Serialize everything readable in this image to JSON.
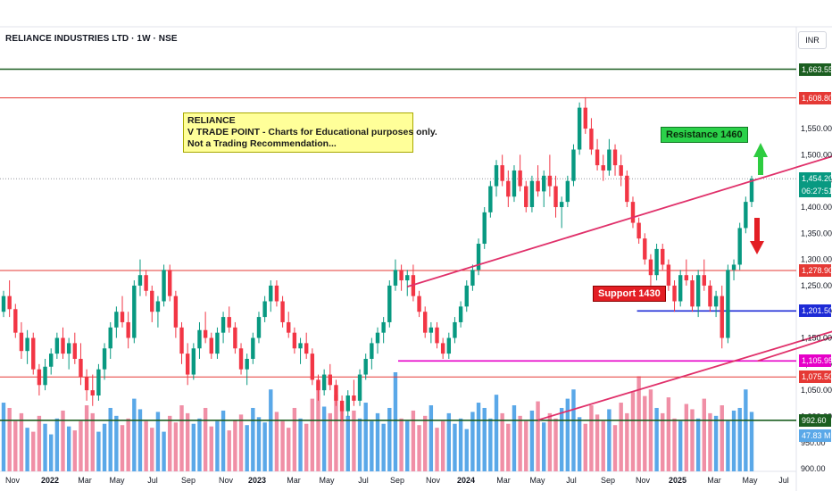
{
  "header": {
    "title": "RELIANCE INDUSTRIES LTD · 1W · NSE",
    "currency": "INR"
  },
  "annotations": {
    "note_lines": [
      "RELIANCE",
      "V TRADE POINT - Charts for Educational purposes only.",
      "Not a Trading Recommendation..."
    ],
    "resistance_label": "Resistance  1460",
    "support_label": "Support 1430"
  },
  "colors": {
    "up": "#089981",
    "down": "#f23645",
    "vol_up": "#5aa8e8",
    "vol_down": "#f08fa6",
    "trend": "#e0306a",
    "red_level": "#e53935",
    "green_level": "#1b5e20",
    "blue_level": "#1e2bd6",
    "magenta_level": "#e600c8"
  },
  "chart_data": {
    "type": "candlestick",
    "x_tick_labels": [
      "Nov",
      "2022",
      "Mar",
      "May",
      "Jul",
      "Sep",
      "Nov",
      "2023",
      "Mar",
      "May",
      "Jul",
      "Sep",
      "Nov",
      "2024",
      "Mar",
      "May",
      "Jul",
      "Sep",
      "Nov",
      "2025",
      "Mar",
      "May",
      "Jul"
    ],
    "y_tick_labels": [
      "1,550.00",
      "1,500.00",
      "1,450.00",
      "1,400.00",
      "1,350.00",
      "1,300.00",
      "1,250.00",
      "1,200.00",
      "1,150.00",
      "1,100.00",
      "1,050.00",
      "1,000.00",
      "950.00",
      "900.00"
    ],
    "y_ticks": [
      1550,
      1500,
      1450,
      1400,
      1350,
      1300,
      1250,
      1200,
      1150,
      1100,
      1050,
      1000,
      950,
      900
    ],
    "ylim": [
      895,
      1690
    ],
    "price_tags": [
      {
        "value": 1663.55,
        "label": "1,663.55",
        "kind": "green_level"
      },
      {
        "value": 1608.8,
        "label": "1,608.80",
        "kind": "red_level"
      },
      {
        "value": 1454.2,
        "label": "1,454.20",
        "sub": "06:27:51",
        "kind": "current"
      },
      {
        "value": 1278.9,
        "label": "1,278.90",
        "kind": "red_level"
      },
      {
        "value": 1201.5,
        "label": "1,201.50",
        "kind": "blue_level"
      },
      {
        "value": 1105.95,
        "label": "1,105.95",
        "kind": "magenta_level"
      },
      {
        "value": 1075.5,
        "label": "1,075.50",
        "kind": "red_level"
      },
      {
        "value": 992.6,
        "label": "992.60",
        "kind": "green_level"
      }
    ],
    "volume_label": "47.83 M",
    "horizontal_levels": [
      {
        "value": 1663.55,
        "kind": "green_level",
        "from": 0.0,
        "to": 1.0
      },
      {
        "value": 1608.8,
        "kind": "red_level",
        "from": 0.0,
        "to": 1.0
      },
      {
        "value": 1278.9,
        "kind": "red_level",
        "from": 0.0,
        "to": 1.0
      },
      {
        "value": 1201.5,
        "kind": "blue_level",
        "from": 0.8,
        "to": 1.0
      },
      {
        "value": 1105.95,
        "kind": "magenta_level",
        "from": 0.5,
        "to": 1.0
      },
      {
        "value": 1075.5,
        "kind": "red_level",
        "from": 0.0,
        "to": 1.0
      },
      {
        "value": 992.6,
        "kind": "green_level",
        "from": 0.0,
        "to": 1.0
      }
    ],
    "trendlines": [
      {
        "from": [
          68,
          1248
        ],
        "to": [
          172,
          1610
        ]
      },
      {
        "from": [
          90,
          993
        ],
        "to": [
          191,
          1338
        ]
      },
      {
        "from": [
          172,
          1610
        ],
        "to": [
          224,
          1268
        ]
      },
      {
        "from": [
          127,
          1106
        ],
        "to": [
          191,
          1338
        ]
      }
    ],
    "candles_ohlc": [
      [
        1200,
        1240,
        1190,
        1230
      ],
      [
        1230,
        1260,
        1190,
        1205
      ],
      [
        1205,
        1215,
        1150,
        1160
      ],
      [
        1160,
        1180,
        1110,
        1125
      ],
      [
        1125,
        1165,
        1100,
        1150
      ],
      [
        1150,
        1160,
        1080,
        1090
      ],
      [
        1090,
        1100,
        1040,
        1060
      ],
      [
        1060,
        1110,
        1050,
        1095
      ],
      [
        1095,
        1130,
        1080,
        1120
      ],
      [
        1120,
        1160,
        1110,
        1150
      ],
      [
        1150,
        1170,
        1110,
        1120
      ],
      [
        1120,
        1150,
        1090,
        1140
      ],
      [
        1140,
        1160,
        1100,
        1110
      ],
      [
        1110,
        1140,
        1060,
        1075
      ],
      [
        1075,
        1090,
        1030,
        1050
      ],
      [
        1050,
        1080,
        1020,
        1040
      ],
      [
        1040,
        1100,
        1030,
        1090
      ],
      [
        1090,
        1140,
        1070,
        1130
      ],
      [
        1130,
        1180,
        1110,
        1170
      ],
      [
        1170,
        1210,
        1150,
        1200
      ],
      [
        1200,
        1230,
        1170,
        1180
      ],
      [
        1180,
        1200,
        1130,
        1150
      ],
      [
        1150,
        1260,
        1140,
        1250
      ],
      [
        1250,
        1300,
        1230,
        1270
      ],
      [
        1270,
        1280,
        1230,
        1240
      ],
      [
        1240,
        1250,
        1180,
        1200
      ],
      [
        1200,
        1230,
        1170,
        1220
      ],
      [
        1220,
        1290,
        1210,
        1280
      ],
      [
        1280,
        1290,
        1220,
        1230
      ],
      [
        1230,
        1240,
        1150,
        1170
      ],
      [
        1170,
        1180,
        1100,
        1120
      ],
      [
        1120,
        1140,
        1060,
        1080
      ],
      [
        1080,
        1140,
        1070,
        1130
      ],
      [
        1130,
        1180,
        1110,
        1165
      ],
      [
        1165,
        1200,
        1140,
        1150
      ],
      [
        1150,
        1160,
        1110,
        1120
      ],
      [
        1120,
        1170,
        1110,
        1160
      ],
      [
        1160,
        1200,
        1140,
        1190
      ],
      [
        1190,
        1210,
        1160,
        1170
      ],
      [
        1170,
        1180,
        1120,
        1130
      ],
      [
        1130,
        1140,
        1080,
        1090
      ],
      [
        1090,
        1120,
        1060,
        1110
      ],
      [
        1110,
        1160,
        1100,
        1150
      ],
      [
        1150,
        1200,
        1140,
        1190
      ],
      [
        1190,
        1230,
        1180,
        1220
      ],
      [
        1220,
        1260,
        1200,
        1250
      ],
      [
        1250,
        1260,
        1210,
        1220
      ],
      [
        1220,
        1230,
        1170,
        1180
      ],
      [
        1180,
        1200,
        1150,
        1160
      ],
      [
        1160,
        1170,
        1120,
        1130
      ],
      [
        1130,
        1150,
        1100,
        1140
      ],
      [
        1140,
        1160,
        1110,
        1120
      ],
      [
        1120,
        1130,
        1060,
        1070
      ],
      [
        1070,
        1080,
        1030,
        1050
      ],
      [
        1050,
        1090,
        1040,
        1080
      ],
      [
        1080,
        1100,
        1050,
        1060
      ],
      [
        1060,
        1070,
        1020,
        1030
      ],
      [
        1030,
        1040,
        990,
        1010
      ],
      [
        1010,
        1050,
        1000,
        1040
      ],
      [
        1040,
        1070,
        1020,
        1030
      ],
      [
        1030,
        1090,
        1020,
        1080
      ],
      [
        1080,
        1120,
        1070,
        1110
      ],
      [
        1110,
        1150,
        1090,
        1140
      ],
      [
        1140,
        1170,
        1120,
        1160
      ],
      [
        1160,
        1190,
        1140,
        1180
      ],
      [
        1180,
        1260,
        1170,
        1250
      ],
      [
        1250,
        1300,
        1240,
        1280
      ],
      [
        1280,
        1290,
        1240,
        1260
      ],
      [
        1260,
        1280,
        1230,
        1270
      ],
      [
        1270,
        1290,
        1220,
        1230
      ],
      [
        1230,
        1240,
        1190,
        1200
      ],
      [
        1200,
        1210,
        1150,
        1160
      ],
      [
        1160,
        1180,
        1140,
        1170
      ],
      [
        1170,
        1180,
        1130,
        1140
      ],
      [
        1140,
        1150,
        1110,
        1120
      ],
      [
        1120,
        1160,
        1110,
        1150
      ],
      [
        1150,
        1190,
        1140,
        1180
      ],
      [
        1180,
        1220,
        1170,
        1210
      ],
      [
        1210,
        1260,
        1200,
        1250
      ],
      [
        1250,
        1290,
        1240,
        1280
      ],
      [
        1280,
        1340,
        1270,
        1330
      ],
      [
        1330,
        1400,
        1320,
        1390
      ],
      [
        1390,
        1450,
        1380,
        1440
      ],
      [
        1440,
        1490,
        1420,
        1480
      ],
      [
        1480,
        1500,
        1440,
        1450
      ],
      [
        1450,
        1470,
        1400,
        1420
      ],
      [
        1420,
        1480,
        1410,
        1470
      ],
      [
        1470,
        1500,
        1430,
        1440
      ],
      [
        1440,
        1450,
        1390,
        1400
      ],
      [
        1400,
        1460,
        1390,
        1450
      ],
      [
        1450,
        1480,
        1420,
        1430
      ],
      [
        1430,
        1470,
        1400,
        1460
      ],
      [
        1460,
        1500,
        1420,
        1440
      ],
      [
        1440,
        1460,
        1380,
        1400
      ],
      [
        1400,
        1420,
        1360,
        1410
      ],
      [
        1410,
        1460,
        1400,
        1450
      ],
      [
        1450,
        1520,
        1440,
        1510
      ],
      [
        1510,
        1600,
        1500,
        1590
      ],
      [
        1590,
        1610,
        1540,
        1550
      ],
      [
        1550,
        1570,
        1500,
        1510
      ],
      [
        1510,
        1530,
        1470,
        1480
      ],
      [
        1480,
        1500,
        1450,
        1470
      ],
      [
        1470,
        1530,
        1460,
        1510
      ],
      [
        1510,
        1520,
        1460,
        1480
      ],
      [
        1480,
        1500,
        1440,
        1460
      ],
      [
        1460,
        1470,
        1400,
        1410
      ],
      [
        1410,
        1420,
        1360,
        1370
      ],
      [
        1370,
        1380,
        1330,
        1340
      ],
      [
        1340,
        1350,
        1290,
        1300
      ],
      [
        1300,
        1310,
        1250,
        1270
      ],
      [
        1270,
        1330,
        1260,
        1320
      ],
      [
        1320,
        1330,
        1280,
        1290
      ],
      [
        1290,
        1300,
        1240,
        1250
      ],
      [
        1250,
        1260,
        1200,
        1220
      ],
      [
        1220,
        1280,
        1210,
        1270
      ],
      [
        1270,
        1300,
        1250,
        1260
      ],
      [
        1260,
        1270,
        1200,
        1210
      ],
      [
        1210,
        1280,
        1190,
        1270
      ],
      [
        1270,
        1300,
        1240,
        1250
      ],
      [
        1250,
        1260,
        1200,
        1210
      ],
      [
        1210,
        1240,
        1190,
        1230
      ],
      [
        1230,
        1250,
        1130,
        1150
      ],
      [
        1150,
        1290,
        1140,
        1280
      ],
      [
        1280,
        1300,
        1260,
        1290
      ],
      [
        1290,
        1370,
        1280,
        1360
      ],
      [
        1360,
        1420,
        1350,
        1410
      ],
      [
        1410,
        1460,
        1400,
        1454
      ]
    ],
    "volume_series": [
      52,
      48,
      38,
      44,
      33,
      30,
      42,
      36,
      28,
      40,
      46,
      34,
      31,
      38,
      50,
      44,
      30,
      36,
      48,
      42,
      35,
      40,
      55,
      47,
      38,
      33,
      45,
      30,
      42,
      37,
      50,
      44,
      36,
      40,
      48,
      34,
      38,
      46,
      31,
      39,
      43,
      35,
      48,
      41,
      37,
      62,
      45,
      38,
      33,
      48,
      40,
      36,
      55,
      68,
      49,
      44,
      58,
      50,
      42,
      46,
      40,
      52,
      38,
      44,
      36,
      48,
      75,
      40,
      38,
      46,
      35,
      42,
      50,
      33,
      38,
      44,
      36,
      40,
      32,
      45,
      52,
      48,
      40,
      58,
      44,
      36,
      50,
      42,
      38,
      46,
      53,
      37,
      44,
      40,
      48,
      55,
      62,
      41,
      36,
      50,
      43,
      38,
      47,
      35,
      52,
      44,
      60,
      72,
      57,
      62,
      48,
      44,
      56,
      40,
      38,
      51,
      47,
      40,
      55,
      44,
      42,
      50,
      38,
      46,
      48,
      62,
      45
    ]
  }
}
